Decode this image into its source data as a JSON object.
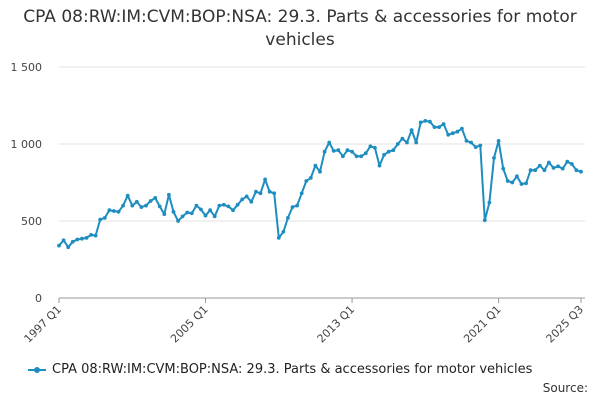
{
  "chart_data": {
    "type": "line",
    "title": "CPA 08:RW:IM:CVM:BOP:NSA: 29.3. Parts & accessories for motor vehicles",
    "xlabel": "",
    "ylabel": "",
    "ylim": [
      0,
      1500
    ],
    "yticks": [
      "0",
      "500",
      "1 000",
      "1 500"
    ],
    "ytick_values": [
      0,
      500,
      1000,
      1500
    ],
    "xtick_labels": [
      "1997 Q1",
      "2005 Q1",
      "2013 Q1",
      "2021 Q1",
      "2025 Q3"
    ],
    "xtick_index": [
      0,
      32,
      64,
      96,
      114
    ],
    "grid": true,
    "legend_position": "bottom",
    "series": [
      {
        "name": "CPA 08:RW:IM:CVM:BOP:NSA: 29.3. Parts & accessories for motor vehicles",
        "color": "#1e8dc0",
        "values": [
          340,
          375,
          330,
          365,
          380,
          385,
          390,
          410,
          405,
          510,
          520,
          570,
          565,
          560,
          600,
          665,
          600,
          625,
          590,
          600,
          630,
          650,
          595,
          545,
          670,
          560,
          500,
          530,
          555,
          550,
          600,
          575,
          535,
          570,
          530,
          600,
          605,
          595,
          570,
          605,
          640,
          660,
          625,
          690,
          680,
          770,
          690,
          680,
          390,
          430,
          520,
          590,
          600,
          680,
          760,
          780,
          860,
          820,
          950,
          1010,
          955,
          960,
          920,
          960,
          950,
          920,
          920,
          940,
          985,
          975,
          860,
          930,
          950,
          960,
          1000,
          1035,
          1010,
          1090,
          1010,
          1140,
          1150,
          1145,
          1110,
          1110,
          1130,
          1060,
          1070,
          1080,
          1100,
          1020,
          1010,
          980,
          990,
          505,
          620,
          910,
          1020,
          840,
          760,
          750,
          790,
          740,
          745,
          830,
          830,
          860,
          830,
          880,
          845,
          855,
          840,
          885,
          870,
          830,
          820
        ]
      }
    ]
  },
  "legend": {
    "label": "CPA 08:RW:IM:CVM:BOP:NSA: 29.3. Parts & accessories for motor vehicles"
  },
  "footer": {
    "source_label": "Source:"
  }
}
